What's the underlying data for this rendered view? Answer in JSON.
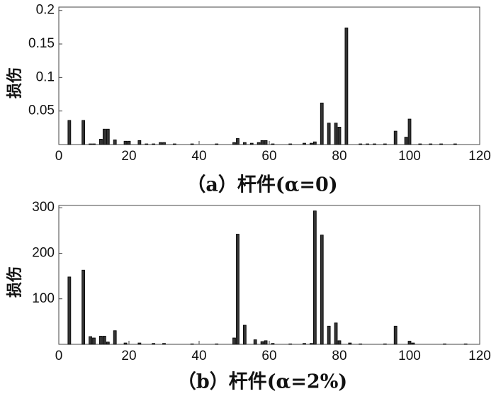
{
  "chart_data": [
    {
      "type": "bar",
      "title": "（a）杆件(α=0)",
      "ylabel": "损伤",
      "color": "#333333",
      "x": [
        3,
        7,
        9,
        10,
        12,
        13,
        14,
        16,
        19,
        20,
        23,
        25,
        27,
        29,
        30,
        33,
        38,
        45,
        50,
        51,
        53,
        55,
        57,
        58,
        59,
        61,
        66,
        70,
        72,
        73,
        75,
        77,
        79,
        80,
        82,
        86,
        88,
        90,
        93,
        96,
        99,
        100,
        103,
        106,
        109,
        113
      ],
      "values": [
        0.036,
        0.036,
        0.001,
        0.001,
        0.008,
        0.023,
        0.023,
        0.007,
        0.005,
        0.005,
        0.006,
        0.001,
        0.001,
        0.003,
        0.003,
        0.001,
        0.001,
        0.001,
        0.003,
        0.009,
        0.003,
        0.002,
        0.003,
        0.006,
        0.006,
        0.001,
        0.001,
        0.002,
        0.002,
        0.004,
        0.062,
        0.032,
        0.032,
        0.026,
        0.174,
        0.001,
        0.001,
        0.001,
        0.001,
        0.02,
        0.011,
        0.038,
        0.001,
        0.001,
        0.001,
        0.001
      ],
      "xlim": [
        0,
        120
      ],
      "xticks": [
        0,
        20,
        40,
        60,
        80,
        100,
        120
      ],
      "ylim": [
        0,
        0.205
      ],
      "yticks": [
        0.05,
        0.1,
        0.15,
        0.2
      ]
    },
    {
      "type": "bar",
      "title": "（b）杆件(α=2%)",
      "ylabel": "损伤",
      "color": "#333333",
      "x": [
        3,
        7,
        9,
        10,
        12,
        13,
        14,
        16,
        19,
        23,
        27,
        30,
        38,
        45,
        50,
        51,
        53,
        56,
        58,
        59,
        61,
        66,
        70,
        72,
        73,
        75,
        77,
        79,
        80,
        83,
        86,
        93,
        96,
        100,
        101,
        110,
        116
      ],
      "values": [
        148,
        163,
        17,
        14,
        18,
        18,
        5,
        30,
        3,
        3,
        2,
        2,
        1,
        1,
        14,
        242,
        42,
        10,
        6,
        8,
        2,
        1,
        2,
        2,
        293,
        240,
        40,
        47,
        8,
        3,
        1,
        1,
        40,
        7,
        3,
        1,
        1
      ],
      "xlim": [
        0,
        120
      ],
      "xticks": [
        0,
        20,
        40,
        60,
        80,
        100,
        120
      ],
      "ylim": [
        0,
        305
      ],
      "yticks": [
        100,
        200,
        300
      ]
    }
  ]
}
